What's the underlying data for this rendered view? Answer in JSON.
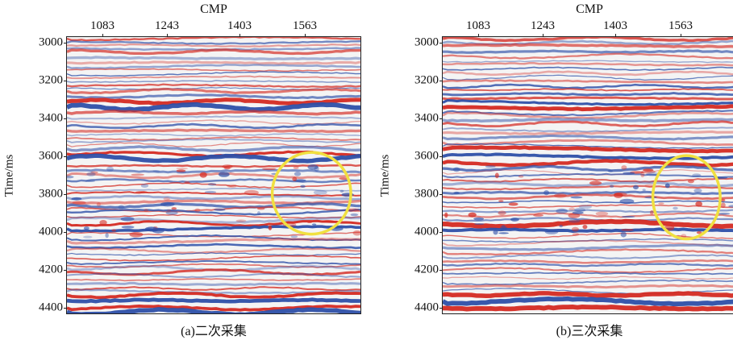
{
  "panels": [
    {
      "caption": "(a)二次采集",
      "x_axis_label": "CMP",
      "x_ticks": [
        "1083",
        "1243",
        "1403",
        "1563"
      ],
      "y_axis_label": "Time/ms",
      "y_ticks": [
        "3000",
        "3200",
        "3400",
        "3600",
        "3800",
        "4000",
        "4200",
        "4400"
      ]
    },
    {
      "caption": "(b)三次采集",
      "x_axis_label": "CMP",
      "x_ticks": [
        "1083",
        "1243",
        "1403",
        "1563"
      ],
      "y_axis_label": "Time/ms",
      "y_ticks": [
        "3000",
        "3200",
        "3400",
        "3600",
        "3800",
        "4000",
        "4200",
        "4400"
      ]
    }
  ],
  "colors": {
    "positive_amplitude": "#d42a22",
    "negative_amplitude": "#2d4fa8",
    "background": "#f4f4f4",
    "highlight_circle": "#f0e040"
  }
}
